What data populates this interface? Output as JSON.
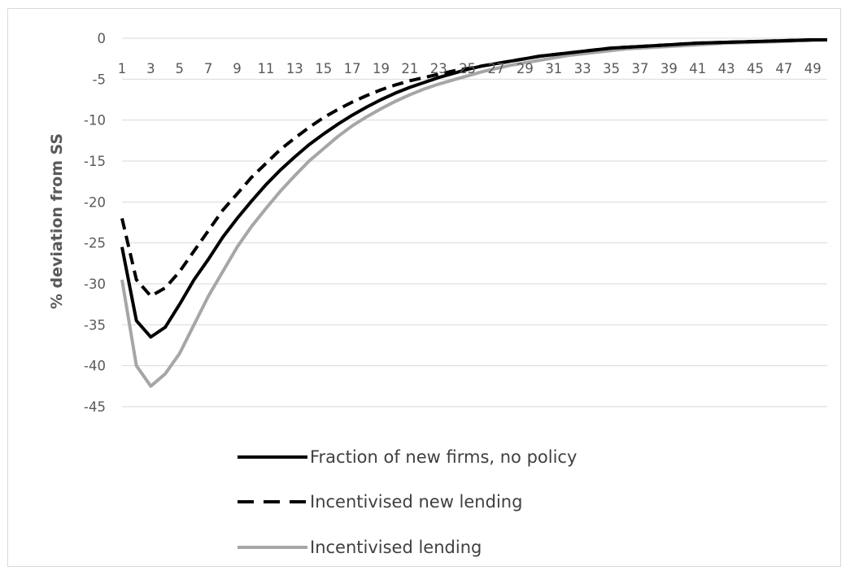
{
  "chart_data": {
    "type": "line",
    "title": "",
    "xlabel": "",
    "ylabel": "% deviation from SS",
    "ylim": [
      -45,
      0
    ],
    "yticks": [
      0,
      -5,
      -10,
      -15,
      -20,
      -25,
      -30,
      -35,
      -40,
      -45
    ],
    "xlim": [
      1,
      50
    ],
    "xticks": [
      1,
      3,
      5,
      7,
      9,
      11,
      13,
      15,
      17,
      19,
      21,
      23,
      25,
      27,
      29,
      31,
      33,
      35,
      37,
      39,
      41,
      43,
      45,
      47,
      49
    ],
    "grid": "horizontal",
    "legend_position": "bottom",
    "x": [
      1,
      2,
      3,
      4,
      5,
      6,
      7,
      8,
      9,
      10,
      11,
      12,
      13,
      14,
      15,
      16,
      17,
      18,
      19,
      20,
      21,
      22,
      23,
      24,
      25,
      26,
      27,
      28,
      29,
      30,
      31,
      32,
      33,
      34,
      35,
      36,
      37,
      38,
      39,
      40,
      41,
      42,
      43,
      44,
      45,
      46,
      47,
      48,
      49,
      50
    ],
    "series": [
      {
        "name": "Fraction of new firms, no policy",
        "style": "solid",
        "color": "#000000",
        "values": [
          -25.5,
          -34.5,
          -36.5,
          -35.3,
          -32.5,
          -29.5,
          -27,
          -24.3,
          -22,
          -19.9,
          -17.9,
          -16.1,
          -14.5,
          -13,
          -11.7,
          -10.5,
          -9.4,
          -8.4,
          -7.5,
          -6.7,
          -6,
          -5.4,
          -4.8,
          -4.3,
          -3.8,
          -3.4,
          -3.1,
          -2.8,
          -2.5,
          -2.2,
          -2,
          -1.8,
          -1.6,
          -1.4,
          -1.2,
          -1.1,
          -1,
          -0.9,
          -0.8,
          -0.7,
          -0.6,
          -0.55,
          -0.5,
          -0.45,
          -0.4,
          -0.35,
          -0.3,
          -0.25,
          -0.2,
          -0.2
        ]
      },
      {
        "name": "Incentivised new lending",
        "style": "dashed",
        "color": "#000000",
        "values": [
          -22,
          -29.5,
          -31.5,
          -30.5,
          -28.5,
          -26,
          -23.5,
          -21,
          -19,
          -17,
          -15.3,
          -13.6,
          -12.2,
          -10.9,
          -9.7,
          -8.7,
          -7.8,
          -7,
          -6.3,
          -5.7,
          -5.2,
          -4.8,
          -4.4,
          -4,
          -3.7,
          -3.4,
          -3.1,
          -2.8,
          -2.5,
          -2.2,
          -2,
          -1.8,
          -1.6,
          -1.4,
          -1.2,
          -1.1,
          -1,
          -0.9,
          -0.8,
          -0.7,
          -0.6,
          -0.55,
          -0.5,
          -0.45,
          -0.4,
          -0.35,
          -0.3,
          -0.25,
          -0.2,
          -0.2
        ]
      },
      {
        "name": "Incentivised lending",
        "style": "solid",
        "color": "#a6a6a6",
        "values": [
          -29.5,
          -40,
          -42.5,
          -41,
          -38.5,
          -35,
          -31.5,
          -28.5,
          -25.5,
          -23,
          -20.8,
          -18.7,
          -16.8,
          -15,
          -13.5,
          -12,
          -10.7,
          -9.6,
          -8.6,
          -7.7,
          -6.9,
          -6.2,
          -5.6,
          -5.1,
          -4.6,
          -4.1,
          -3.7,
          -3.3,
          -3,
          -2.7,
          -2.4,
          -2.1,
          -1.9,
          -1.7,
          -1.5,
          -1.3,
          -1.2,
          -1.1,
          -1,
          -0.9,
          -0.8,
          -0.7,
          -0.6,
          -0.55,
          -0.5,
          -0.45,
          -0.4,
          -0.3,
          -0.25,
          -0.2
        ]
      }
    ]
  }
}
